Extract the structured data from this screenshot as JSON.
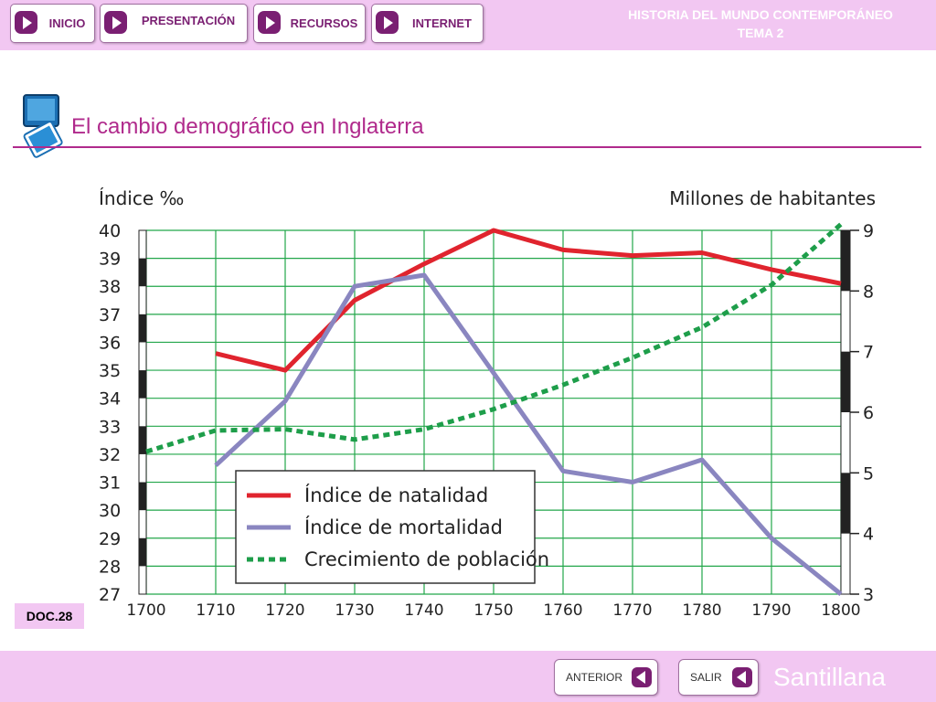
{
  "header": {
    "nav": [
      {
        "label": "INICIO"
      },
      {
        "label": "PRESENTACIÓN"
      },
      {
        "label": "RECURSOS"
      },
      {
        "label": "INTERNET"
      }
    ],
    "title_line1": "HISTORIA DEL MUNDO CONTEMPORÁNEO",
    "title_line2": "TEMA 2"
  },
  "page_title": "El cambio demográfico en Inglaterra",
  "doc_label": "DOC.28",
  "footer": {
    "prev_label": "ANTERIOR",
    "exit_label": "SALIR",
    "brand": "Santillana"
  },
  "colors": {
    "accent": "#b02a8c",
    "bar": "#f2c7f2",
    "natalidad": "#e0242e",
    "mortalidad": "#8a86c0",
    "poblacion": "#1e9e4a",
    "grid": "#22a64a"
  },
  "chart_data": {
    "type": "line",
    "ylabel": "Índice ‰",
    "y2label": "Millones de habitantes",
    "ylim": [
      27,
      40
    ],
    "y2lim": [
      3,
      9
    ],
    "yticks": [
      27,
      28,
      29,
      30,
      31,
      32,
      33,
      34,
      35,
      36,
      37,
      38,
      39,
      40
    ],
    "y2ticks": [
      3,
      4,
      5,
      6,
      7,
      8,
      9
    ],
    "xticks": [
      1700,
      1710,
      1720,
      1730,
      1740,
      1750,
      1760,
      1770,
      1780,
      1790,
      1800
    ],
    "grid": true,
    "legend_position": "bottom-center",
    "series": [
      {
        "name": "Índice de natalidad",
        "axis": "left",
        "style": "solid",
        "x": [
          1710,
          1720,
          1730,
          1740,
          1750,
          1760,
          1770,
          1780,
          1790,
          1800
        ],
        "values": [
          35.6,
          35.0,
          37.5,
          38.8,
          40.0,
          39.3,
          39.1,
          39.2,
          38.6,
          38.1
        ]
      },
      {
        "name": "Índice de mortalidad",
        "axis": "left",
        "style": "solid",
        "x": [
          1710,
          1720,
          1730,
          1740,
          1750,
          1760,
          1770,
          1780,
          1790,
          1800
        ],
        "values": [
          31.6,
          33.9,
          38.0,
          38.4,
          34.9,
          31.4,
          31.0,
          31.8,
          29.0,
          27.0
        ]
      },
      {
        "name": "Crecimiento de población",
        "axis": "right",
        "style": "dashed",
        "x": [
          1700,
          1710,
          1720,
          1730,
          1740,
          1750,
          1760,
          1770,
          1780,
          1790,
          1800
        ],
        "values": [
          5.35,
          5.7,
          5.72,
          5.55,
          5.72,
          6.05,
          6.45,
          6.9,
          7.4,
          8.1,
          9.1
        ]
      }
    ]
  }
}
